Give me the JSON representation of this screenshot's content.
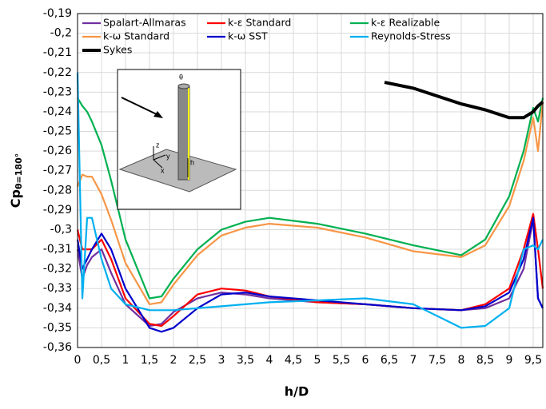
{
  "chart_data": {
    "type": "line",
    "xlabel": "h/D",
    "ylabel": "Cp",
    "ylabel_subscript": "θ=180°",
    "x": [
      0,
      0.1,
      0.2,
      0.3,
      0.5,
      0.7,
      1,
      1.5,
      1.75,
      2,
      2.5,
      3,
      3.5,
      4,
      5,
      6,
      7,
      8,
      8.5,
      9,
      9.3,
      9.5,
      9.6,
      9.7
    ],
    "series": [
      {
        "name": "Spalart-Allmaras",
        "color": "#7030a0",
        "values": [
          -0.31,
          -0.325,
          -0.318,
          -0.314,
          -0.31,
          -0.322,
          -0.338,
          -0.349,
          -0.348,
          -0.342,
          -0.335,
          -0.332,
          -0.333,
          -0.335,
          -0.337,
          -0.338,
          -0.34,
          -0.341,
          -0.34,
          -0.335,
          -0.32,
          -0.295,
          -0.335,
          -0.34
        ]
      },
      {
        "name": "k-ε Standard",
        "color": "#ff0000",
        "values": [
          -0.3,
          -0.31,
          -0.31,
          -0.31,
          -0.305,
          -0.315,
          -0.335,
          -0.348,
          -0.349,
          -0.344,
          -0.333,
          -0.33,
          -0.331,
          -0.334,
          -0.337,
          -0.338,
          -0.34,
          -0.341,
          -0.338,
          -0.33,
          -0.31,
          -0.292,
          -0.31,
          -0.33
        ]
      },
      {
        "name": "k-ε Realizable",
        "color": "#00b050",
        "values": [
          -0.233,
          -0.237,
          -0.24,
          -0.245,
          -0.257,
          -0.275,
          -0.305,
          -0.335,
          -0.334,
          -0.325,
          -0.31,
          -0.3,
          -0.296,
          -0.294,
          -0.297,
          -0.302,
          -0.308,
          -0.313,
          -0.305,
          -0.283,
          -0.26,
          -0.238,
          -0.245,
          -0.233
        ]
      },
      {
        "name": "k-ω Standard",
        "color": "#f79646",
        "values": [
          -0.278,
          -0.272,
          -0.273,
          -0.273,
          -0.282,
          -0.295,
          -0.317,
          -0.338,
          -0.337,
          -0.328,
          -0.313,
          -0.303,
          -0.299,
          -0.297,
          -0.299,
          -0.304,
          -0.311,
          -0.314,
          -0.308,
          -0.288,
          -0.265,
          -0.243,
          -0.26,
          -0.235
        ]
      },
      {
        "name": "k-ω SST",
        "color": "#0000cc",
        "values": [
          -0.305,
          -0.32,
          -0.315,
          -0.31,
          -0.302,
          -0.31,
          -0.33,
          -0.35,
          -0.352,
          -0.35,
          -0.34,
          -0.333,
          -0.332,
          -0.334,
          -0.336,
          -0.338,
          -0.34,
          -0.341,
          -0.339,
          -0.332,
          -0.315,
          -0.294,
          -0.335,
          -0.34
        ]
      },
      {
        "name": "Reynolds-Stress",
        "color": "#00b0f0",
        "values": [
          -0.22,
          -0.335,
          -0.294,
          -0.294,
          -0.315,
          -0.33,
          -0.338,
          -0.341,
          -0.341,
          -0.341,
          -0.34,
          -0.339,
          -0.338,
          -0.337,
          -0.336,
          -0.335,
          -0.338,
          -0.35,
          -0.349,
          -0.34,
          -0.31,
          -0.308,
          -0.31,
          -0.305
        ]
      },
      {
        "name": "Sykes",
        "color": "#000000",
        "x": [
          6.4,
          7,
          8,
          8.5,
          9,
          9.3,
          9.5,
          9.6,
          9.7
        ],
        "values": [
          -0.225,
          -0.228,
          -0.236,
          -0.239,
          -0.243,
          -0.243,
          -0.24,
          -0.237,
          -0.235
        ]
      }
    ],
    "xlim": [
      0,
      9.7
    ],
    "xticks": [
      0,
      {
        "value": 0.5,
        "label": "0,5"
      },
      1,
      {
        "value": 1.5,
        "label": "1,5"
      },
      2,
      {
        "value": 2.5,
        "label": "2,5"
      },
      3,
      {
        "value": 3.5,
        "label": "3,5"
      },
      4,
      {
        "value": 4.5,
        "label": "4,5"
      },
      5,
      {
        "value": 5.5,
        "label": "5,5"
      },
      6,
      {
        "value": 6.5,
        "label": "6,5"
      },
      7,
      {
        "value": 7.5,
        "label": "7,5"
      },
      8,
      {
        "value": 8.5,
        "label": "8,5"
      },
      9,
      {
        "value": 9.5,
        "label": "9,5"
      }
    ],
    "ylim": [
      -0.36,
      -0.19
    ],
    "yticks": [
      {
        "value": -0.19,
        "label": "-0,19"
      },
      {
        "value": -0.2,
        "label": "-0,2"
      },
      {
        "value": -0.21,
        "label": "-0,21"
      },
      {
        "value": -0.22,
        "label": "-0,22"
      },
      {
        "value": -0.23,
        "label": "-0,23"
      },
      {
        "value": -0.24,
        "label": "-0,24"
      },
      {
        "value": -0.25,
        "label": "-0,25"
      },
      {
        "value": -0.26,
        "label": "-0,26"
      },
      {
        "value": -0.27,
        "label": "-0,27"
      },
      {
        "value": -0.28,
        "label": "-0,28"
      },
      {
        "value": -0.29,
        "label": "-0,29"
      },
      {
        "value": -0.3,
        "label": "-0,3"
      },
      {
        "value": -0.31,
        "label": "-0,31"
      },
      {
        "value": -0.32,
        "label": "-0,32"
      },
      {
        "value": -0.33,
        "label": "-0,33"
      },
      {
        "value": -0.34,
        "label": "-0,34"
      },
      {
        "value": -0.35,
        "label": "-0,35"
      },
      {
        "value": -0.36,
        "label": "-0,36"
      }
    ],
    "grid": true,
    "legend": "top-left",
    "inset_labels": [
      "θ",
      "z",
      "y",
      "x",
      "h"
    ]
  }
}
